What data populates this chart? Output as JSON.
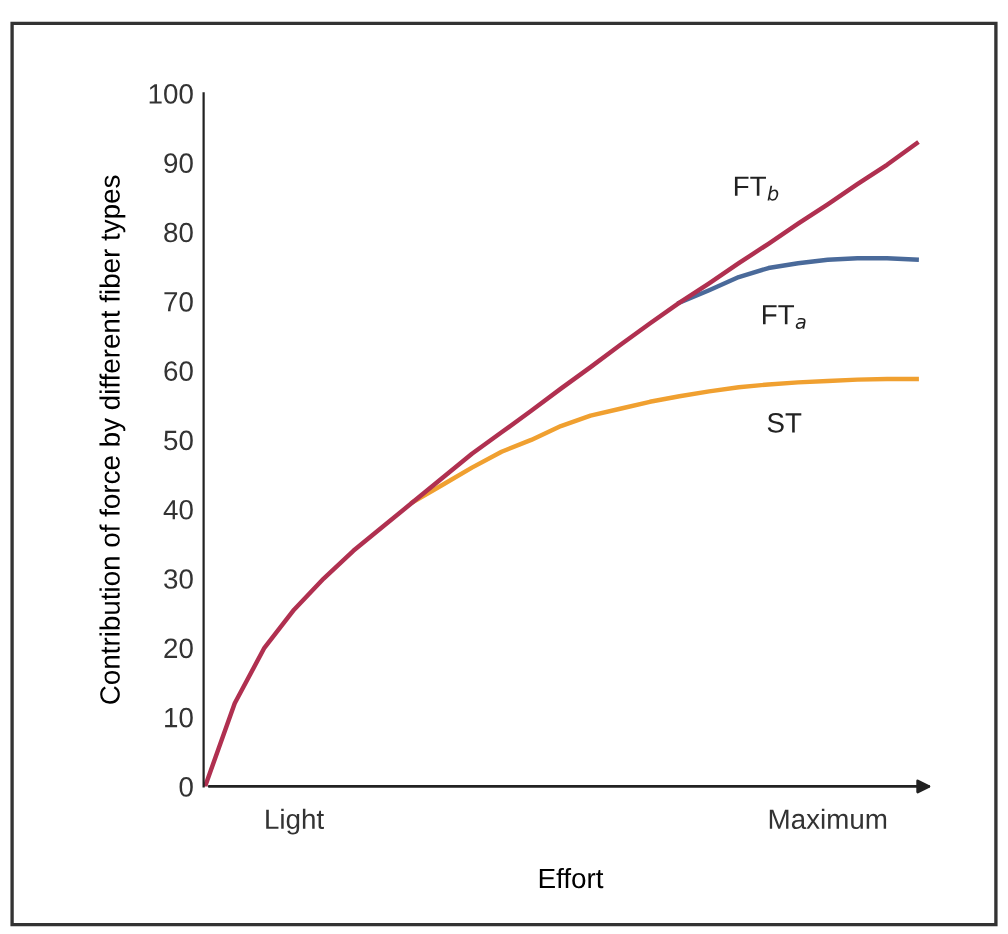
{
  "chart_data": {
    "type": "line",
    "xlabel": "Effort",
    "ylabel": "Contribution of force by different fiber types",
    "categories": [
      null,
      null,
      null,
      "Light",
      null,
      null,
      null,
      null,
      null,
      null,
      null,
      null,
      null,
      null,
      null,
      null,
      null,
      null,
      null,
      null,
      null,
      "Maximum",
      null,
      null,
      null
    ],
    "ylim": [
      0,
      100
    ],
    "yticks": [
      0,
      10,
      20,
      30,
      40,
      50,
      60,
      70,
      80,
      90,
      100
    ],
    "grid": false,
    "legend": false,
    "marker": "none",
    "line_style": "solid",
    "series": [
      {
        "name": "ST",
        "color": "#f0a030",
        "values": [
          null,
          null,
          null,
          null,
          null,
          null,
          null,
          41,
          43.5,
          46,
          48.3,
          50,
          52,
          53.5,
          54.5,
          55.5,
          56.3,
          57,
          57.6,
          58,
          58.3,
          58.5,
          58.7,
          58.8,
          58.8
        ]
      },
      {
        "name": "FT$_{a}$",
        "color": "#4a6a9a",
        "values": [
          null,
          null,
          null,
          null,
          null,
          null,
          null,
          null,
          null,
          null,
          null,
          null,
          null,
          null,
          null,
          null,
          69.8,
          71.6,
          73.5,
          74.8,
          75.5,
          76,
          76.2,
          76.2,
          76
        ]
      },
      {
        "name": "FT$_{b}$",
        "color": "#b03050",
        "values": [
          0,
          12,
          20,
          25.5,
          30,
          34,
          37.5,
          41,
          44.5,
          48,
          51.1,
          54.2,
          57.4,
          60.5,
          63.7,
          66.8,
          69.8,
          72.6,
          75.5,
          78.3,
          81.2,
          84,
          86.9,
          89.7,
          92.8
        ]
      }
    ]
  }
}
